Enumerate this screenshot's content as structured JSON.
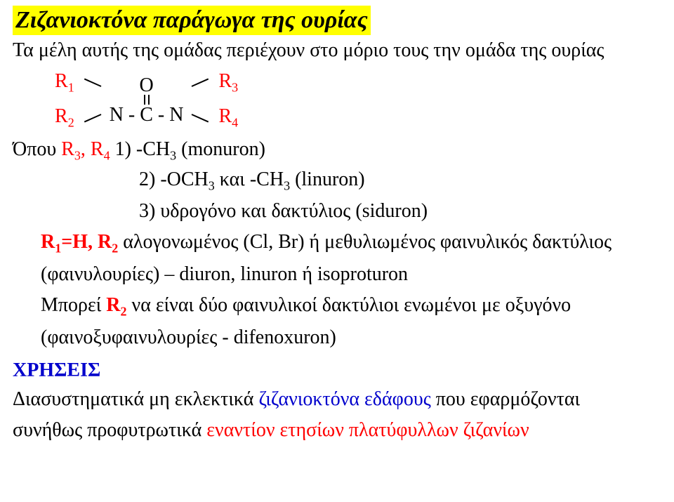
{
  "title": "Ζιζανιοκτόνα παράγωγα της ουρίας",
  "subtitle": "Τα μέλη αυτής της ομάδας περιέχουν στο μόριο τους την ομάδα της ουρίας",
  "formula": {
    "r1": "R",
    "r1sub": "1",
    "r2": "R",
    "r2sub": "2",
    "r3": "R",
    "r3sub": "3",
    "r4": "R",
    "r4sub": "4",
    "oxygen": "O",
    "ncn": "N - C - N"
  },
  "where": {
    "lead": "Όπου ",
    "r34": "R",
    "r3sub": "3",
    "comma": ", R",
    "r4sub": "4",
    "opt1": "  1) -CH",
    "opt1sub": "3",
    "opt1tail": " (monuron)",
    "opt2": "2) -OCH",
    "opt2sub1": "3",
    "opt2mid": " και -CH",
    "opt2sub2": "3",
    "opt2tail": " (linuron)",
    "opt3": "3) υδρογόνο και δακτύλιος (siduron)"
  },
  "r1r2": {
    "key": "R",
    "k1sub": "1",
    "eq": "=H, R",
    "k2sub": "2",
    "rest1": " αλογονωμένος (Cl, Br) ή μεθυλιωμένος φαινυλικός δακτύλιος",
    "rest2": "(φαινυλουρίες) – diuron, linuron ή isoproturon"
  },
  "may": {
    "lead": "Μπορεί ",
    "r2": "R",
    "r2sub": "2",
    "rest1": " να είναι δύο φαινυλικοί δακτύλιοι ενωμένοι με οξυγόνο",
    "rest2": "(φαινοξυφαινυλουρίες  -  difenoxuron)"
  },
  "uses_label": "ΧΡΗΣΕΙΣ",
  "final1a": "Διασυστηματικά μη εκλεκτικά ",
  "final1b": "ζιζανιοκτόνα εδάφους",
  "final1c": " που εφαρμόζονται",
  "final2a": "συνήθως προφυτρωτικά ",
  "final2b": "εναντίον ετησίων πλατύφυλλων ζιζανίων"
}
